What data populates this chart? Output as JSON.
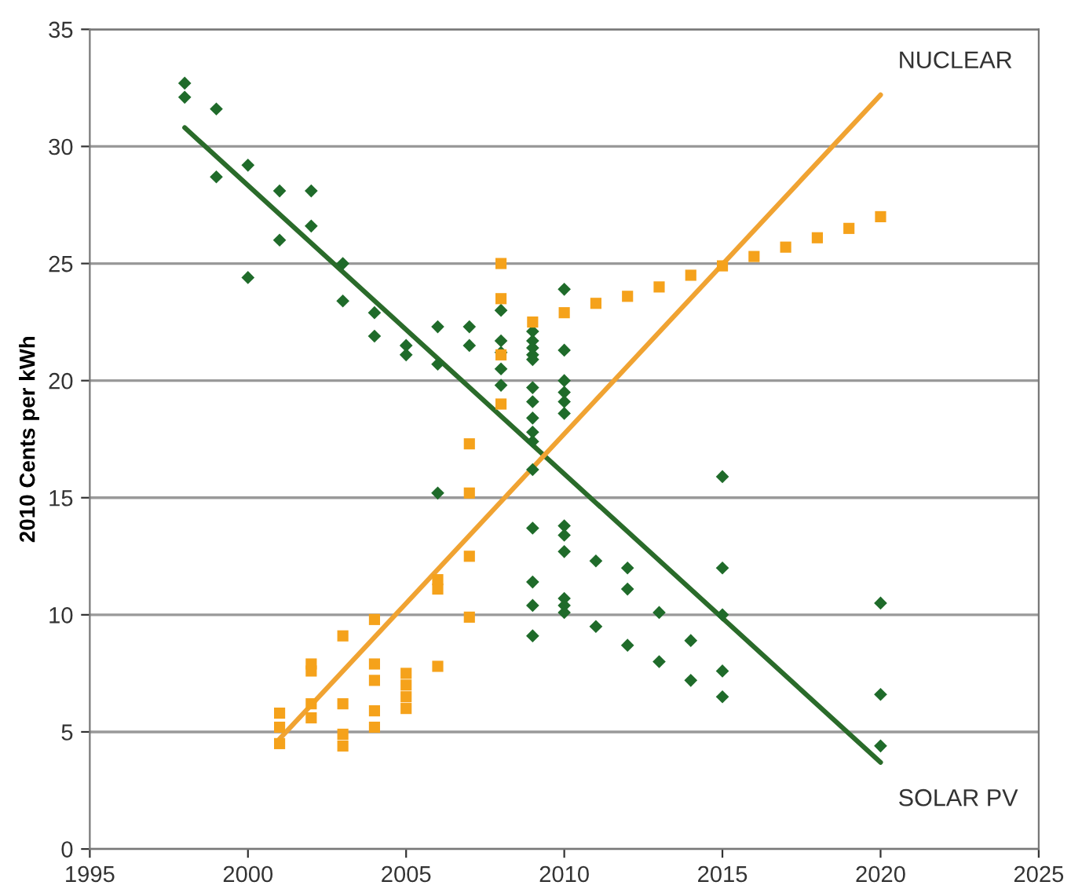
{
  "chart_data": {
    "type": "scatter",
    "ylabel": "2010 Cents per kWh",
    "xlim": [
      1995,
      2025
    ],
    "xticks": [
      1995,
      2000,
      2005,
      2010,
      2015,
      2020,
      2025
    ],
    "ylim": [
      0,
      35
    ],
    "yticks": [
      0,
      5,
      10,
      15,
      20,
      25,
      30,
      35
    ],
    "grid": "y",
    "legend": false,
    "series": [
      {
        "marker": "diamond",
        "color": "#1f6b2a",
        "x": [
          1998,
          1998,
          1999,
          1999,
          2000,
          2000,
          2001,
          2001,
          2002,
          2002,
          2003,
          2003,
          2004,
          2004,
          2005,
          2005,
          2006,
          2006,
          2006,
          2007,
          2007,
          2008,
          2008,
          2008,
          2008,
          2008,
          2009,
          2009,
          2009,
          2009,
          2009,
          2009,
          2009,
          2009,
          2009,
          2009,
          2009,
          2009,
          2009,
          2009,
          2009,
          2010,
          2010,
          2010,
          2010,
          2010,
          2010,
          2010,
          2010,
          2010,
          2010,
          2010,
          2010,
          2011,
          2011,
          2012,
          2012,
          2012,
          2013,
          2013,
          2014,
          2014,
          2015,
          2015,
          2015,
          2015,
          2015,
          2020,
          2020,
          2020
        ],
        "values": [
          32.7,
          32.1,
          31.6,
          28.7,
          29.2,
          24.4,
          28.1,
          26.0,
          28.1,
          26.6,
          25.0,
          23.4,
          22.9,
          21.9,
          21.5,
          21.1,
          22.3,
          20.7,
          15.2,
          22.3,
          21.5,
          23.0,
          21.7,
          21.2,
          20.5,
          19.8,
          22.1,
          21.7,
          21.4,
          21.1,
          20.9,
          19.7,
          19.1,
          18.4,
          17.8,
          17.4,
          16.2,
          13.7,
          11.4,
          10.4,
          9.1,
          23.9,
          21.3,
          20.0,
          19.5,
          19.1,
          18.6,
          13.8,
          13.4,
          12.7,
          10.7,
          10.4,
          10.1,
          12.3,
          9.5,
          12.0,
          11.1,
          8.7,
          10.1,
          8.0,
          8.9,
          7.2,
          15.9,
          12.0,
          10.0,
          7.6,
          6.5,
          10.5,
          6.6,
          4.4
        ]
      },
      {
        "marker": "square",
        "color": "#f5a21b",
        "x": [
          2001,
          2001,
          2001,
          2002,
          2002,
          2002,
          2002,
          2003,
          2003,
          2003,
          2003,
          2004,
          2004,
          2004,
          2004,
          2004,
          2005,
          2005,
          2005,
          2005,
          2006,
          2006,
          2006,
          2007,
          2007,
          2007,
          2007,
          2008,
          2008,
          2008,
          2008,
          2009,
          2010,
          2011,
          2012,
          2013,
          2014,
          2015,
          2016,
          2017,
          2018,
          2019,
          2020
        ],
        "values": [
          4.5,
          5.2,
          5.8,
          5.6,
          6.2,
          7.6,
          7.9,
          9.1,
          6.2,
          4.9,
          4.4,
          9.8,
          7.9,
          7.2,
          5.9,
          5.2,
          7.5,
          7.0,
          6.5,
          6.0,
          11.5,
          11.1,
          7.8,
          17.3,
          15.2,
          12.5,
          9.9,
          25.0,
          23.5,
          21.1,
          19.0,
          22.5,
          22.9,
          23.3,
          23.6,
          24.0,
          24.5,
          24.9,
          25.3,
          25.7,
          26.1,
          26.5,
          27.0
        ]
      },
      {
        "type": "line",
        "name": "SOLAR PV",
        "color": "#2a6b2a",
        "line_style": "solid",
        "marker": "none",
        "x": [
          1998,
          2020
        ],
        "values": [
          30.8,
          3.7
        ]
      },
      {
        "type": "line",
        "name": "NUCLEAR",
        "color": "#f0a332",
        "line_style": "solid",
        "marker": "none",
        "x": [
          2001,
          2020
        ],
        "values": [
          4.7,
          32.2
        ]
      }
    ]
  }
}
